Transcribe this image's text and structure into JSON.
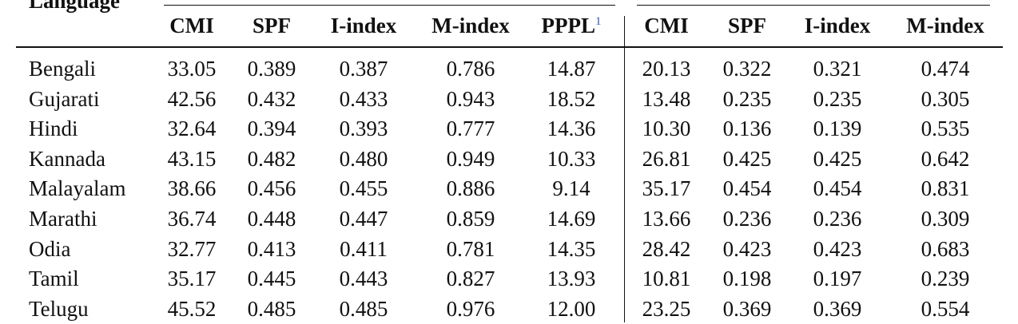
{
  "table": {
    "language_header": "Language",
    "columns_left": [
      "CMI",
      "SPF",
      "I-index",
      "M-index",
      "PPPL"
    ],
    "pppl_citation": "1",
    "columns_right": [
      "CMI",
      "SPF",
      "I-index",
      "M-index"
    ],
    "rows": [
      {
        "language": "Bengali",
        "left": [
          "33.05",
          "0.389",
          "0.387",
          "0.786",
          "14.87"
        ],
        "right": [
          "20.13",
          "0.322",
          "0.321",
          "0.474"
        ]
      },
      {
        "language": "Gujarati",
        "left": [
          "42.56",
          "0.432",
          "0.433",
          "0.943",
          "18.52"
        ],
        "right": [
          "13.48",
          "0.235",
          "0.235",
          "0.305"
        ]
      },
      {
        "language": "Hindi",
        "left": [
          "32.64",
          "0.394",
          "0.393",
          "0.777",
          "14.36"
        ],
        "right": [
          "10.30",
          "0.136",
          "0.139",
          "0.535"
        ]
      },
      {
        "language": "Kannada",
        "left": [
          "43.15",
          "0.482",
          "0.480",
          "0.949",
          "10.33"
        ],
        "right": [
          "26.81",
          "0.425",
          "0.425",
          "0.642"
        ]
      },
      {
        "language": "Malayalam",
        "left": [
          "38.66",
          "0.456",
          "0.455",
          "0.886",
          "9.14"
        ],
        "right": [
          "35.17",
          "0.454",
          "0.454",
          "0.831"
        ]
      },
      {
        "language": "Marathi",
        "left": [
          "36.74",
          "0.448",
          "0.447",
          "0.859",
          "14.69"
        ],
        "right": [
          "13.66",
          "0.236",
          "0.236",
          "0.309"
        ]
      },
      {
        "language": "Odia",
        "left": [
          "32.77",
          "0.413",
          "0.411",
          "0.781",
          "14.35"
        ],
        "right": [
          "28.42",
          "0.423",
          "0.423",
          "0.683"
        ]
      },
      {
        "language": "Tamil",
        "left": [
          "35.17",
          "0.445",
          "0.443",
          "0.827",
          "13.93"
        ],
        "right": [
          "10.81",
          "0.198",
          "0.197",
          "0.239"
        ]
      },
      {
        "language": "Telugu",
        "left": [
          "45.52",
          "0.485",
          "0.485",
          "0.976",
          "12.00"
        ],
        "right": [
          "23.25",
          "0.369",
          "0.369",
          "0.554"
        ]
      }
    ]
  }
}
